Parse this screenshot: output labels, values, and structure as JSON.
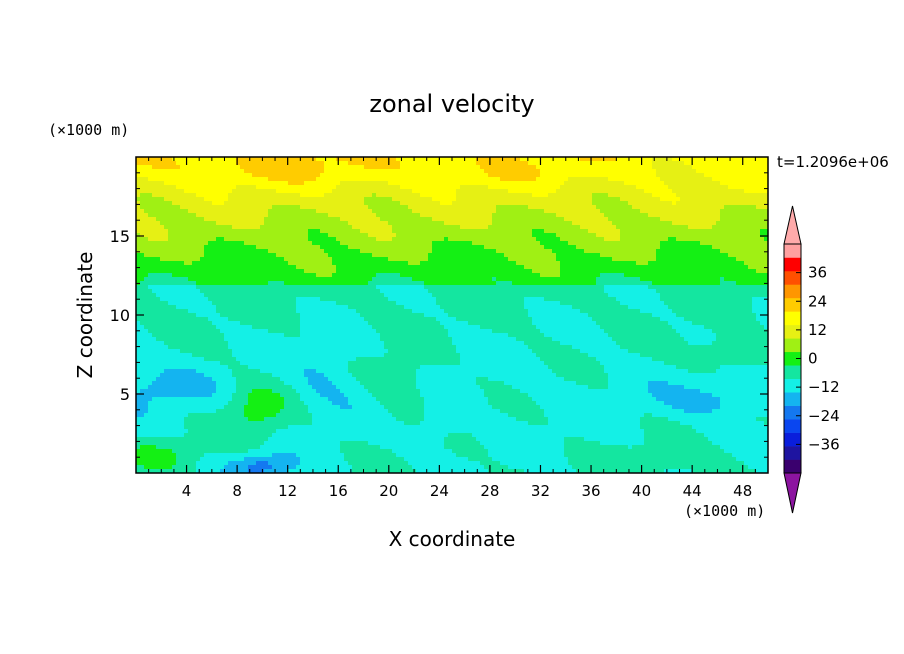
{
  "chart_data": {
    "type": "heatmap",
    "title": "zonal velocity",
    "xlabel": "X coordinate",
    "ylabel": "Z coordinate",
    "x_unit_label": "(×1000 m)",
    "y_unit_label": "(×1000 m)",
    "time_label": "t=1.2096e+06",
    "xlim": [
      0,
      50
    ],
    "ylim": [
      0,
      20
    ],
    "x_ticks": [
      4,
      8,
      12,
      16,
      20,
      24,
      28,
      32,
      36,
      40,
      44,
      48
    ],
    "y_ticks": [
      5,
      10,
      15
    ],
    "colorbar": {
      "levels": [
        -42,
        -36,
        -30,
        -24,
        -18,
        -12,
        -6,
        0,
        6,
        12,
        18,
        24,
        30,
        36,
        42
      ],
      "tick_labels": [
        36,
        24,
        12,
        0,
        -12,
        -24,
        -36
      ],
      "extend": "both",
      "colors": [
        "#3a006e",
        "#1e14a0",
        "#0a1edc",
        "#0a46f0",
        "#1478f0",
        "#14b4f0",
        "#14f0e6",
        "#14e6a0",
        "#14f014",
        "#a0f014",
        "#e6f014",
        "#ffff00",
        "#ffcc00",
        "#ff9600",
        "#ff5000",
        "#ff0000",
        "#ffa0a0"
      ],
      "under_color": "#8c14a0",
      "over_color": "#ffaaaa"
    }
  }
}
